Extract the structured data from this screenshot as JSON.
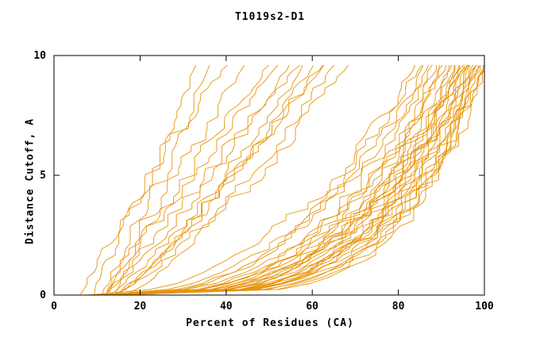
{
  "chart_data": {
    "type": "line",
    "title": "T1019s2-D1",
    "xlabel": "Percent of Residues (CA)",
    "ylabel": "Distance Cutoff, A",
    "xlim": [
      0,
      100
    ],
    "ylim": [
      0,
      10
    ],
    "xticks": [
      0,
      20,
      40,
      60,
      80,
      100
    ],
    "yticks": [
      0,
      5,
      10
    ],
    "grid": false,
    "legend": false,
    "line_color": "#e8940a",
    "axis_color": "#000000",
    "background": "#ffffff",
    "y_top_drawn": 9.6,
    "series": [
      {
        "start": 6,
        "end": 40,
        "shape": 1.15,
        "seed": 1
      },
      {
        "start": 9,
        "end": 33,
        "shape": 1.0,
        "seed": 2
      },
      {
        "start": 11,
        "end": 36,
        "shape": 0.95,
        "seed": 3
      },
      {
        "start": 12,
        "end": 44,
        "shape": 1.05,
        "seed": 4
      },
      {
        "start": 13,
        "end": 50,
        "shape": 1.1,
        "seed": 5
      },
      {
        "start": 14,
        "end": 52,
        "shape": 1.2,
        "seed": 6
      },
      {
        "start": 12,
        "end": 55,
        "shape": 0.9,
        "seed": 7
      },
      {
        "start": 13,
        "end": 58,
        "shape": 0.85,
        "seed": 8
      },
      {
        "start": 14,
        "end": 60,
        "shape": 0.8,
        "seed": 9
      },
      {
        "start": 15,
        "end": 62,
        "shape": 0.9,
        "seed": 10
      },
      {
        "start": 13,
        "end": 65,
        "shape": 0.75,
        "seed": 11
      },
      {
        "start": 16,
        "end": 68,
        "shape": 0.8,
        "seed": 12
      },
      {
        "start": 12,
        "end": 57,
        "shape": 1.0,
        "seed": 13
      },
      {
        "start": 15,
        "end": 63,
        "shape": 0.95,
        "seed": 14
      },
      {
        "start": 10,
        "end": 84,
        "shape": 0.4,
        "seed": 15
      },
      {
        "start": 11,
        "end": 86,
        "shape": 0.38,
        "seed": 16
      },
      {
        "start": 12,
        "end": 88,
        "shape": 0.35,
        "seed": 17
      },
      {
        "start": 10,
        "end": 90,
        "shape": 0.33,
        "seed": 18
      },
      {
        "start": 13,
        "end": 90,
        "shape": 0.3,
        "seed": 19
      },
      {
        "start": 11,
        "end": 92,
        "shape": 0.32,
        "seed": 20
      },
      {
        "start": 12,
        "end": 92,
        "shape": 0.28,
        "seed": 21
      },
      {
        "start": 14,
        "end": 93,
        "shape": 0.3,
        "seed": 22
      },
      {
        "start": 10,
        "end": 94,
        "shape": 0.27,
        "seed": 23
      },
      {
        "start": 12,
        "end": 94,
        "shape": 0.33,
        "seed": 24
      },
      {
        "start": 13,
        "end": 95,
        "shape": 0.26,
        "seed": 25
      },
      {
        "start": 11,
        "end": 95,
        "shape": 0.3,
        "seed": 26
      },
      {
        "start": 12,
        "end": 96,
        "shape": 0.24,
        "seed": 27
      },
      {
        "start": 14,
        "end": 96,
        "shape": 0.28,
        "seed": 28
      },
      {
        "start": 10,
        "end": 97,
        "shape": 0.26,
        "seed": 29
      },
      {
        "start": 12,
        "end": 97,
        "shape": 0.3,
        "seed": 30
      },
      {
        "start": 13,
        "end": 98,
        "shape": 0.23,
        "seed": 31
      },
      {
        "start": 11,
        "end": 98,
        "shape": 0.27,
        "seed": 32
      },
      {
        "start": 12,
        "end": 99,
        "shape": 0.25,
        "seed": 33
      },
      {
        "start": 14,
        "end": 99,
        "shape": 0.22,
        "seed": 34
      },
      {
        "start": 10,
        "end": 100,
        "shape": 0.24,
        "seed": 35
      },
      {
        "start": 12,
        "end": 100,
        "shape": 0.26,
        "seed": 36
      },
      {
        "start": 13,
        "end": 100,
        "shape": 0.21,
        "seed": 37
      },
      {
        "start": 11,
        "end": 100,
        "shape": 0.23,
        "seed": 38
      },
      {
        "start": 15,
        "end": 98,
        "shape": 0.35,
        "seed": 39
      },
      {
        "start": 16,
        "end": 96,
        "shape": 0.4,
        "seed": 40
      },
      {
        "start": 9,
        "end": 91,
        "shape": 0.36,
        "seed": 41
      },
      {
        "start": 13,
        "end": 87,
        "shape": 0.42,
        "seed": 42
      },
      {
        "start": 15,
        "end": 93,
        "shape": 0.25,
        "seed": 43
      },
      {
        "start": 16,
        "end": 99,
        "shape": 0.29,
        "seed": 44
      },
      {
        "start": 8,
        "end": 85,
        "shape": 0.45,
        "seed": 45
      },
      {
        "start": 9,
        "end": 89,
        "shape": 0.31,
        "seed": 46
      }
    ]
  }
}
